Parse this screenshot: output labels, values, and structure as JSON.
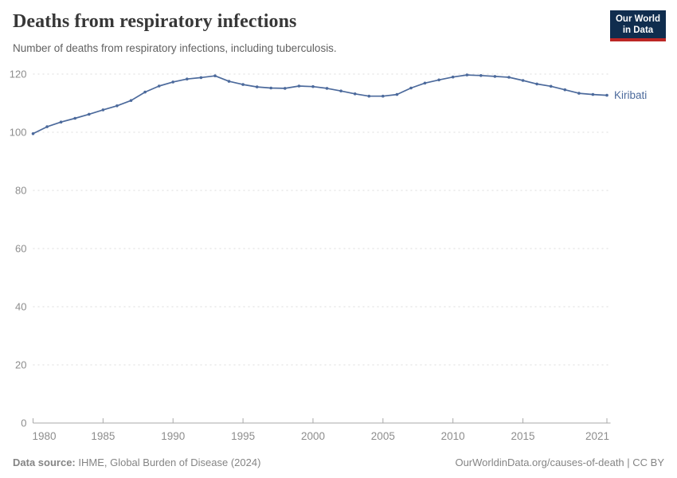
{
  "header": {
    "title": "Deaths from respiratory infections",
    "subtitle": "Number of deaths from respiratory infections, including tuberculosis."
  },
  "logo": {
    "line1": "Our World",
    "line2": "in Data"
  },
  "chart_data": {
    "type": "line",
    "title": "Deaths from respiratory infections",
    "subtitle": "Number of deaths from respiratory infections, including tuberculosis.",
    "x": [
      1980,
      1981,
      1982,
      1983,
      1984,
      1985,
      1986,
      1987,
      1988,
      1989,
      1990,
      1991,
      1992,
      1993,
      1994,
      1995,
      1996,
      1997,
      1998,
      1999,
      2000,
      2001,
      2002,
      2003,
      2004,
      2005,
      2006,
      2007,
      2008,
      2009,
      2010,
      2011,
      2012,
      2013,
      2014,
      2015,
      2016,
      2017,
      2018,
      2019,
      2020,
      2021
    ],
    "series": [
      {
        "name": "Kiribati",
        "values": [
          99.5,
          101.9,
          103.5,
          104.8,
          106.2,
          107.7,
          109.1,
          110.9,
          113.8,
          115.9,
          117.3,
          118.3,
          118.8,
          119.4,
          117.5,
          116.4,
          115.6,
          115.2,
          115.1,
          115.9,
          115.7,
          115.1,
          114.2,
          113.2,
          112.4,
          112.4,
          113.0,
          115.2,
          116.9,
          118.0,
          119.0,
          119.7,
          119.5,
          119.2,
          118.9,
          117.8,
          116.6,
          115.8,
          114.6,
          113.4,
          113.0,
          112.7
        ]
      }
    ],
    "xticks": [
      1980,
      1985,
      1990,
      1995,
      2000,
      2005,
      2010,
      2015,
      2021
    ],
    "yticks": [
      0,
      20,
      40,
      60,
      80,
      100,
      120
    ],
    "xlim": [
      1980,
      2021
    ],
    "ylim": [
      0,
      120
    ],
    "grid": "horizontal-dashed",
    "legend_position": "end-of-line-label",
    "line_color": "#4c6a9c",
    "marker": "circle",
    "axis_color": "#a8a8a8",
    "tick_label_color": "#8d8d8d",
    "gridline_color": "#dcdcdc"
  },
  "footer": {
    "source_label": "Data source:",
    "source_text": " IHME, Global Burden of Disease (2024)",
    "credit": "OurWorldinData.org/causes-of-death | CC BY"
  }
}
